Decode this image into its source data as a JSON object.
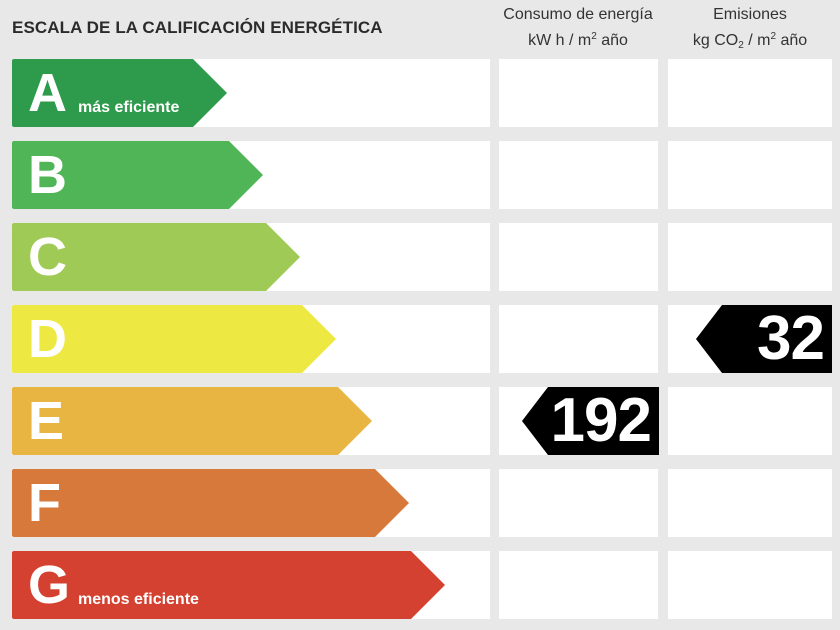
{
  "title": "ESCALA DE LA CALIFICACIÓN ENERGÉTICA",
  "columns": {
    "energy": {
      "line1": "Consumo de energía",
      "unit_main": "kW h  / m",
      "unit_sup": "2",
      "unit_end": " año"
    },
    "emissions": {
      "line1": "Emisiones",
      "unit_a": "kg CO",
      "unit_sub": "2",
      "unit_b": "  / m",
      "unit_sup": "2",
      "unit_end": " año"
    }
  },
  "scale": [
    {
      "letter": "A",
      "sublabel": "más eficiente",
      "color": "#2e9a4c"
    },
    {
      "letter": "B",
      "sublabel": "",
      "color": "#4fb556"
    },
    {
      "letter": "C",
      "sublabel": "",
      "color": "#9fca55"
    },
    {
      "letter": "D",
      "sublabel": "",
      "color": "#eee942"
    },
    {
      "letter": "E",
      "sublabel": "",
      "color": "#e9b542"
    },
    {
      "letter": "F",
      "sublabel": "",
      "color": "#d7793a"
    },
    {
      "letter": "G",
      "sublabel": "menos eficiente",
      "color": "#d44130"
    }
  ],
  "ratings": {
    "energy": {
      "value": "192",
      "class": "E"
    },
    "emissions": {
      "value": "32",
      "class": "D"
    }
  }
}
